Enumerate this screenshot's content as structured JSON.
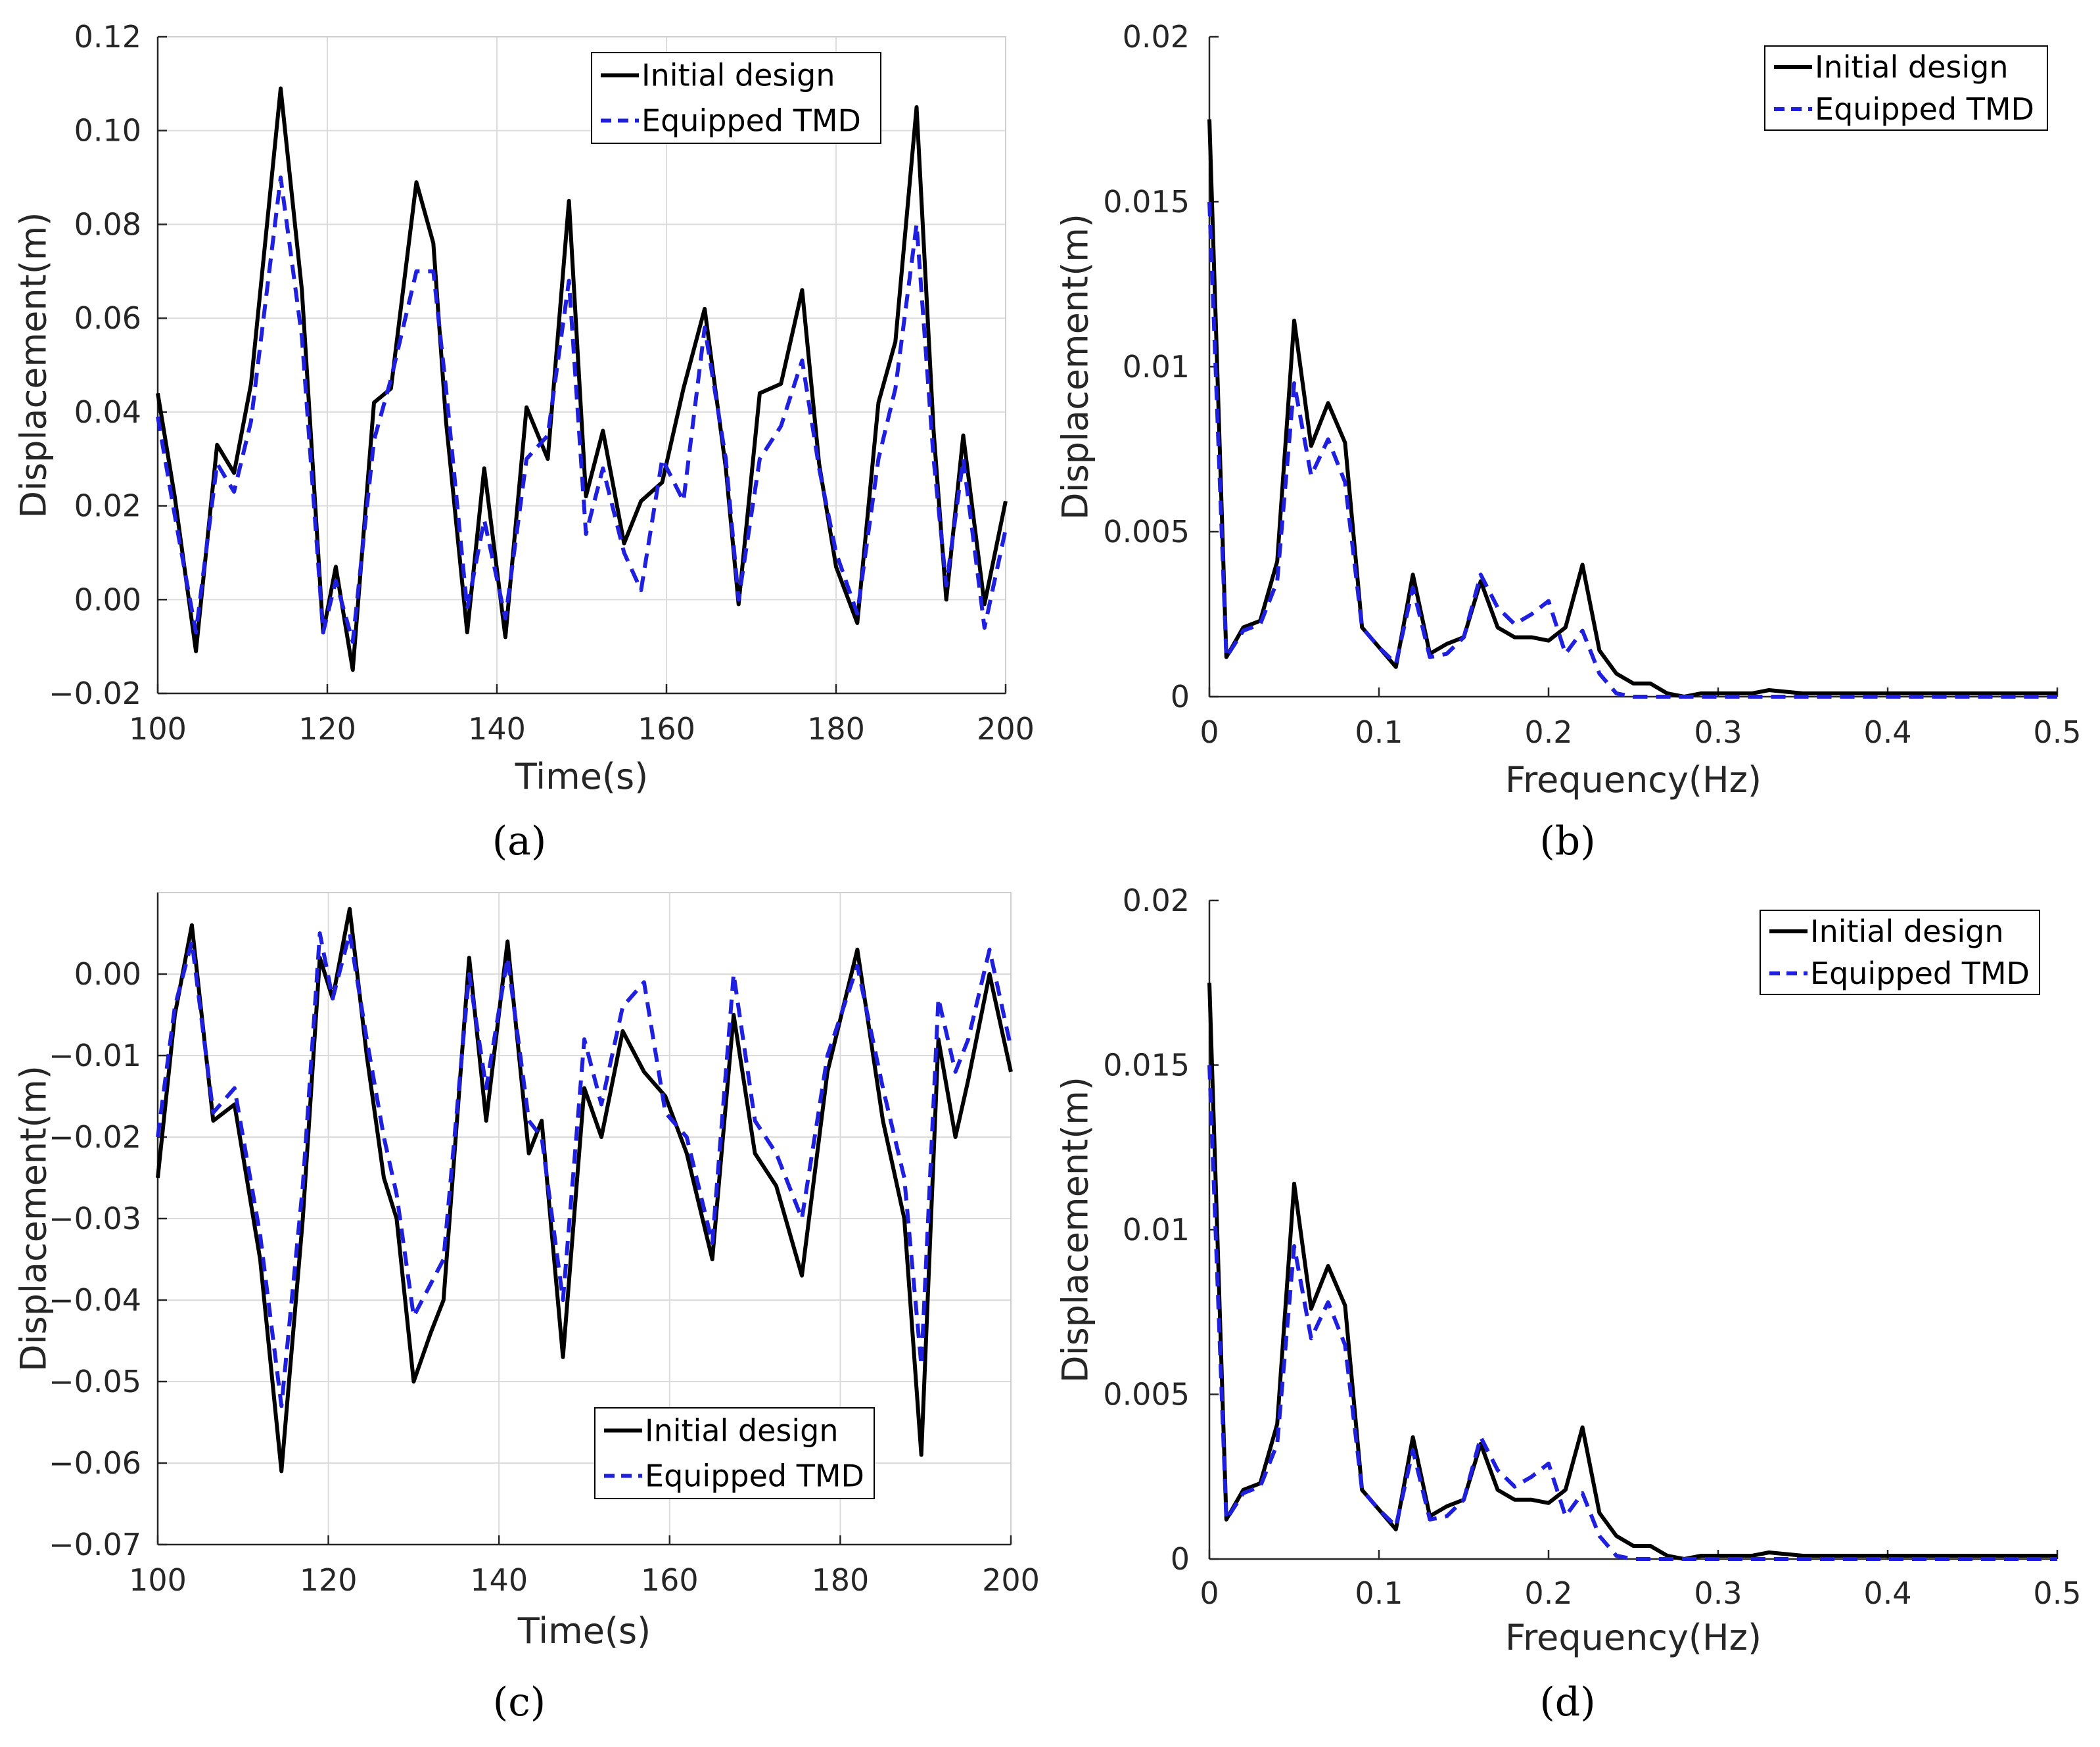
{
  "legend": {
    "series1": "Initial design",
    "series2": "Equipped TMD"
  },
  "colors": {
    "initial": "#000000",
    "tmd": "#1f1fe0",
    "grid": "#dcdcdc",
    "axis": "#262626"
  },
  "chart_data": [
    {
      "id": "a",
      "type": "line",
      "caption": "(a)",
      "xlabel": "Time(s)",
      "ylabel": "Displacement(m)",
      "xlim": [
        100,
        200
      ],
      "ylim": [
        -0.02,
        0.12
      ],
      "xticks": [
        100,
        120,
        140,
        160,
        180,
        200
      ],
      "xtick_labels": [
        "100",
        "120",
        "140",
        "160",
        "180",
        "200"
      ],
      "yticks": [
        -0.02,
        0.0,
        0.02,
        0.04,
        0.06,
        0.08,
        0.1,
        0.12
      ],
      "ytick_labels": [
        "−0.02",
        "0.00",
        "0.02",
        "0.04",
        "0.06",
        "0.08",
        "0.10",
        "0.12"
      ],
      "grid": true,
      "legend_position": "top-right",
      "series": [
        {
          "name": "Initial design",
          "style": "solid",
          "x": [
            100,
            102,
            104.5,
            107,
            109,
            111,
            114.5,
            117,
            119.5,
            121,
            123,
            125.5,
            127.5,
            130.5,
            132.5,
            134,
            136.5,
            138.5,
            141,
            143.5,
            146,
            148.5,
            150.5,
            152.5,
            155,
            157,
            159.5,
            162,
            164.5,
            167,
            168.5,
            171,
            173.5,
            176,
            178,
            180,
            182.5,
            185,
            187,
            189.5,
            191.5,
            193,
            195,
            197.5,
            200
          ],
          "y": [
            0.044,
            0.022,
            -0.011,
            0.033,
            0.027,
            0.046,
            0.109,
            0.066,
            -0.007,
            0.007,
            -0.015,
            0.042,
            0.045,
            0.089,
            0.076,
            0.038,
            -0.007,
            0.028,
            -0.008,
            0.041,
            0.03,
            0.085,
            0.022,
            0.036,
            0.012,
            0.021,
            0.025,
            0.045,
            0.062,
            0.028,
            -0.001,
            0.044,
            0.046,
            0.066,
            0.029,
            0.007,
            -0.005,
            0.042,
            0.055,
            0.105,
            0.036,
            0.0,
            0.035,
            -0.001,
            0.021
          ]
        },
        {
          "name": "Equipped TMD",
          "style": "dashed",
          "x": [
            100,
            102,
            104.5,
            107,
            109,
            111,
            114.5,
            117,
            119.5,
            121,
            123,
            125.5,
            127.5,
            130.5,
            132.5,
            134,
            136.5,
            138.5,
            141,
            143.5,
            146,
            148.5,
            150.5,
            152.5,
            155,
            157,
            159.5,
            162,
            164.5,
            167,
            168.5,
            171,
            173.5,
            176,
            178,
            180,
            182.5,
            185,
            187,
            189.5,
            191.5,
            193,
            195,
            197.5,
            200
          ],
          "y": [
            0.039,
            0.018,
            -0.007,
            0.029,
            0.023,
            0.038,
            0.09,
            0.056,
            -0.007,
            0.004,
            -0.009,
            0.034,
            0.047,
            0.07,
            0.07,
            0.045,
            -0.002,
            0.017,
            -0.004,
            0.03,
            0.035,
            0.068,
            0.014,
            0.028,
            0.01,
            0.002,
            0.03,
            0.021,
            0.058,
            0.03,
            0.0,
            0.03,
            0.037,
            0.051,
            0.028,
            0.01,
            -0.003,
            0.03,
            0.045,
            0.08,
            0.03,
            0.003,
            0.03,
            -0.006,
            0.015
          ]
        }
      ]
    },
    {
      "id": "b",
      "type": "line",
      "caption": "(b)",
      "xlabel": "Frequency(Hz)",
      "ylabel": "Displacement(m)",
      "xlim": [
        0,
        0.5
      ],
      "ylim": [
        0,
        0.02
      ],
      "xticks": [
        0,
        0.1,
        0.2,
        0.3,
        0.4,
        0.5
      ],
      "xtick_labels": [
        "0",
        "0.1",
        "0.2",
        "0.3",
        "0.4",
        "0.5"
      ],
      "yticks": [
        0,
        0.005,
        0.01,
        0.015,
        0.02
      ],
      "ytick_labels": [
        "0",
        "0.005",
        "0.01",
        "0.015",
        "0.02"
      ],
      "grid": false,
      "legend_position": "top-right",
      "series": [
        {
          "name": "Initial design",
          "style": "solid",
          "x": [
            0,
            0.01,
            0.02,
            0.03,
            0.04,
            0.05,
            0.06,
            0.07,
            0.08,
            0.09,
            0.1,
            0.11,
            0.12,
            0.13,
            0.14,
            0.15,
            0.16,
            0.17,
            0.18,
            0.19,
            0.2,
            0.21,
            0.22,
            0.23,
            0.24,
            0.25,
            0.26,
            0.27,
            0.28,
            0.29,
            0.3,
            0.32,
            0.33,
            0.35,
            0.4,
            0.45,
            0.5
          ],
          "y": [
            0.0175,
            0.0012,
            0.0021,
            0.0023,
            0.0041,
            0.0114,
            0.0076,
            0.0089,
            0.0077,
            0.0021,
            0.0015,
            0.0009,
            0.0037,
            0.0013,
            0.0016,
            0.0018,
            0.0035,
            0.0021,
            0.0018,
            0.0018,
            0.0017,
            0.0021,
            0.004,
            0.0014,
            0.0007,
            0.0004,
            0.0004,
            0.0001,
            0.0,
            0.0001,
            0.0001,
            0.0001,
            0.0002,
            0.0001,
            0.0001,
            0.0001,
            0.0001
          ]
        },
        {
          "name": "Equipped TMD",
          "style": "dashed",
          "x": [
            0,
            0.01,
            0.02,
            0.03,
            0.04,
            0.05,
            0.06,
            0.07,
            0.08,
            0.09,
            0.1,
            0.11,
            0.12,
            0.13,
            0.14,
            0.15,
            0.16,
            0.17,
            0.18,
            0.19,
            0.2,
            0.21,
            0.22,
            0.23,
            0.24,
            0.25,
            0.26,
            0.27,
            0.28,
            0.29,
            0.3,
            0.32,
            0.33,
            0.35,
            0.4,
            0.45,
            0.5
          ],
          "y": [
            0.015,
            0.0012,
            0.002,
            0.0022,
            0.0035,
            0.0095,
            0.0067,
            0.0078,
            0.0065,
            0.0021,
            0.0015,
            0.001,
            0.0033,
            0.0012,
            0.0013,
            0.0018,
            0.0037,
            0.0027,
            0.0022,
            0.0025,
            0.0029,
            0.0013,
            0.002,
            0.0007,
            0.0001,
            0.0,
            0.0,
            0.0,
            0.0,
            0.0,
            0.0,
            0.0,
            0.0,
            0.0,
            0.0,
            0.0,
            0.0
          ]
        }
      ]
    },
    {
      "id": "c",
      "type": "line",
      "caption": "(c)",
      "xlabel": "Time(s)",
      "ylabel": "Displacement(m)",
      "xlim": [
        100,
        200
      ],
      "ylim": [
        -0.07,
        0.01
      ],
      "xticks": [
        100,
        120,
        140,
        160,
        180,
        200
      ],
      "xtick_labels": [
        "100",
        "120",
        "140",
        "160",
        "180",
        "200"
      ],
      "yticks": [
        -0.07,
        -0.06,
        -0.05,
        -0.04,
        -0.03,
        -0.02,
        -0.01,
        0.0
      ],
      "ytick_labels": [
        "−0.07",
        "−0.06",
        "−0.05",
        "−0.04",
        "−0.03",
        "−0.02",
        "−0.01",
        "0.00"
      ],
      "grid": true,
      "legend_position": "bottom-right",
      "series": [
        {
          "name": "Initial design",
          "style": "solid",
          "x": [
            100,
            102,
            104,
            106.5,
            109,
            112,
            114.5,
            117,
            119,
            120.5,
            122.5,
            124.5,
            126.5,
            128,
            130,
            132,
            133.5,
            136.5,
            138.5,
            141,
            143.5,
            145,
            147.5,
            150,
            152,
            154.5,
            157,
            159.5,
            162,
            165,
            167.5,
            170,
            172.5,
            175.5,
            178.5,
            182,
            185,
            187.5,
            189.5,
            191.5,
            193.5,
            195,
            197.5,
            200
          ],
          "y": [
            -0.025,
            -0.005,
            0.006,
            -0.018,
            -0.016,
            -0.035,
            -0.061,
            -0.03,
            0.002,
            -0.003,
            0.008,
            -0.01,
            -0.025,
            -0.03,
            -0.05,
            -0.044,
            -0.04,
            0.002,
            -0.018,
            0.004,
            -0.022,
            -0.018,
            -0.047,
            -0.014,
            -0.02,
            -0.007,
            -0.012,
            -0.015,
            -0.022,
            -0.035,
            -0.005,
            -0.022,
            -0.026,
            -0.037,
            -0.012,
            0.003,
            -0.018,
            -0.03,
            -0.059,
            -0.008,
            -0.02,
            -0.013,
            0.0,
            -0.012
          ]
        },
        {
          "name": "Equipped TMD",
          "style": "dashed",
          "x": [
            100,
            102,
            104,
            106.5,
            109,
            112,
            114.5,
            117,
            119,
            120.5,
            122.5,
            124.5,
            126.5,
            128,
            130,
            132,
            133.5,
            136.5,
            138.5,
            141,
            143.5,
            145,
            147.5,
            150,
            152,
            154.5,
            157,
            159.5,
            162,
            165,
            167.5,
            170,
            172.5,
            175.5,
            178.5,
            182,
            185,
            187.5,
            189.5,
            191.5,
            193.5,
            195,
            197.5,
            200
          ],
          "y": [
            -0.02,
            -0.004,
            0.004,
            -0.017,
            -0.014,
            -0.032,
            -0.053,
            -0.026,
            0.005,
            -0.003,
            0.005,
            -0.008,
            -0.02,
            -0.027,
            -0.042,
            -0.038,
            -0.035,
            0.0,
            -0.014,
            0.002,
            -0.018,
            -0.02,
            -0.04,
            -0.008,
            -0.016,
            -0.004,
            -0.001,
            -0.017,
            -0.02,
            -0.033,
            0.0,
            -0.018,
            -0.022,
            -0.03,
            -0.01,
            0.001,
            -0.014,
            -0.025,
            -0.048,
            -0.003,
            -0.012,
            -0.008,
            0.003,
            -0.009
          ]
        }
      ]
    },
    {
      "id": "d",
      "type": "line",
      "caption": "(d)",
      "xlabel": "Frequency(Hz)",
      "ylabel": "Displacement(m)",
      "xlim": [
        0,
        0.5
      ],
      "ylim": [
        0,
        0.02
      ],
      "xticks": [
        0,
        0.1,
        0.2,
        0.3,
        0.4,
        0.5
      ],
      "xtick_labels": [
        "0",
        "0.1",
        "0.2",
        "0.3",
        "0.4",
        "0.5"
      ],
      "yticks": [
        0,
        0.005,
        0.01,
        0.015,
        0.02
      ],
      "ytick_labels": [
        "0",
        "0.005",
        "0.01",
        "0.015",
        "0.02"
      ],
      "grid": false,
      "legend_position": "top-right",
      "series": [
        {
          "name": "Initial design",
          "style": "solid",
          "x": [
            0,
            0.01,
            0.02,
            0.03,
            0.04,
            0.05,
            0.06,
            0.07,
            0.08,
            0.09,
            0.1,
            0.11,
            0.12,
            0.13,
            0.14,
            0.15,
            0.16,
            0.17,
            0.18,
            0.19,
            0.2,
            0.21,
            0.22,
            0.23,
            0.24,
            0.25,
            0.26,
            0.27,
            0.28,
            0.29,
            0.3,
            0.32,
            0.33,
            0.35,
            0.4,
            0.45,
            0.5
          ],
          "y": [
            0.0175,
            0.0012,
            0.0021,
            0.0023,
            0.0041,
            0.0114,
            0.0076,
            0.0089,
            0.0077,
            0.0021,
            0.0015,
            0.0009,
            0.0037,
            0.0013,
            0.0016,
            0.0018,
            0.0035,
            0.0021,
            0.0018,
            0.0018,
            0.0017,
            0.0021,
            0.004,
            0.0014,
            0.0007,
            0.0004,
            0.0004,
            0.0001,
            0.0,
            0.0001,
            0.0001,
            0.0001,
            0.0002,
            0.0001,
            0.0001,
            0.0001,
            0.0001
          ]
        },
        {
          "name": "Equipped TMD",
          "style": "dashed",
          "x": [
            0,
            0.01,
            0.02,
            0.03,
            0.04,
            0.05,
            0.06,
            0.07,
            0.08,
            0.09,
            0.1,
            0.11,
            0.12,
            0.13,
            0.14,
            0.15,
            0.16,
            0.17,
            0.18,
            0.19,
            0.2,
            0.21,
            0.22,
            0.23,
            0.24,
            0.25,
            0.26,
            0.27,
            0.28,
            0.29,
            0.3,
            0.32,
            0.33,
            0.35,
            0.4,
            0.45,
            0.5
          ],
          "y": [
            0.015,
            0.0012,
            0.002,
            0.0022,
            0.0035,
            0.0095,
            0.0067,
            0.0078,
            0.0065,
            0.0021,
            0.0015,
            0.001,
            0.0033,
            0.0012,
            0.0013,
            0.0018,
            0.0037,
            0.0027,
            0.0022,
            0.0025,
            0.0029,
            0.0013,
            0.002,
            0.0007,
            0.0001,
            0.0,
            0.0,
            0.0,
            0.0,
            0.0,
            0.0,
            0.0,
            0.0,
            0.0,
            0.0,
            0.0,
            0.0
          ]
        }
      ]
    }
  ]
}
